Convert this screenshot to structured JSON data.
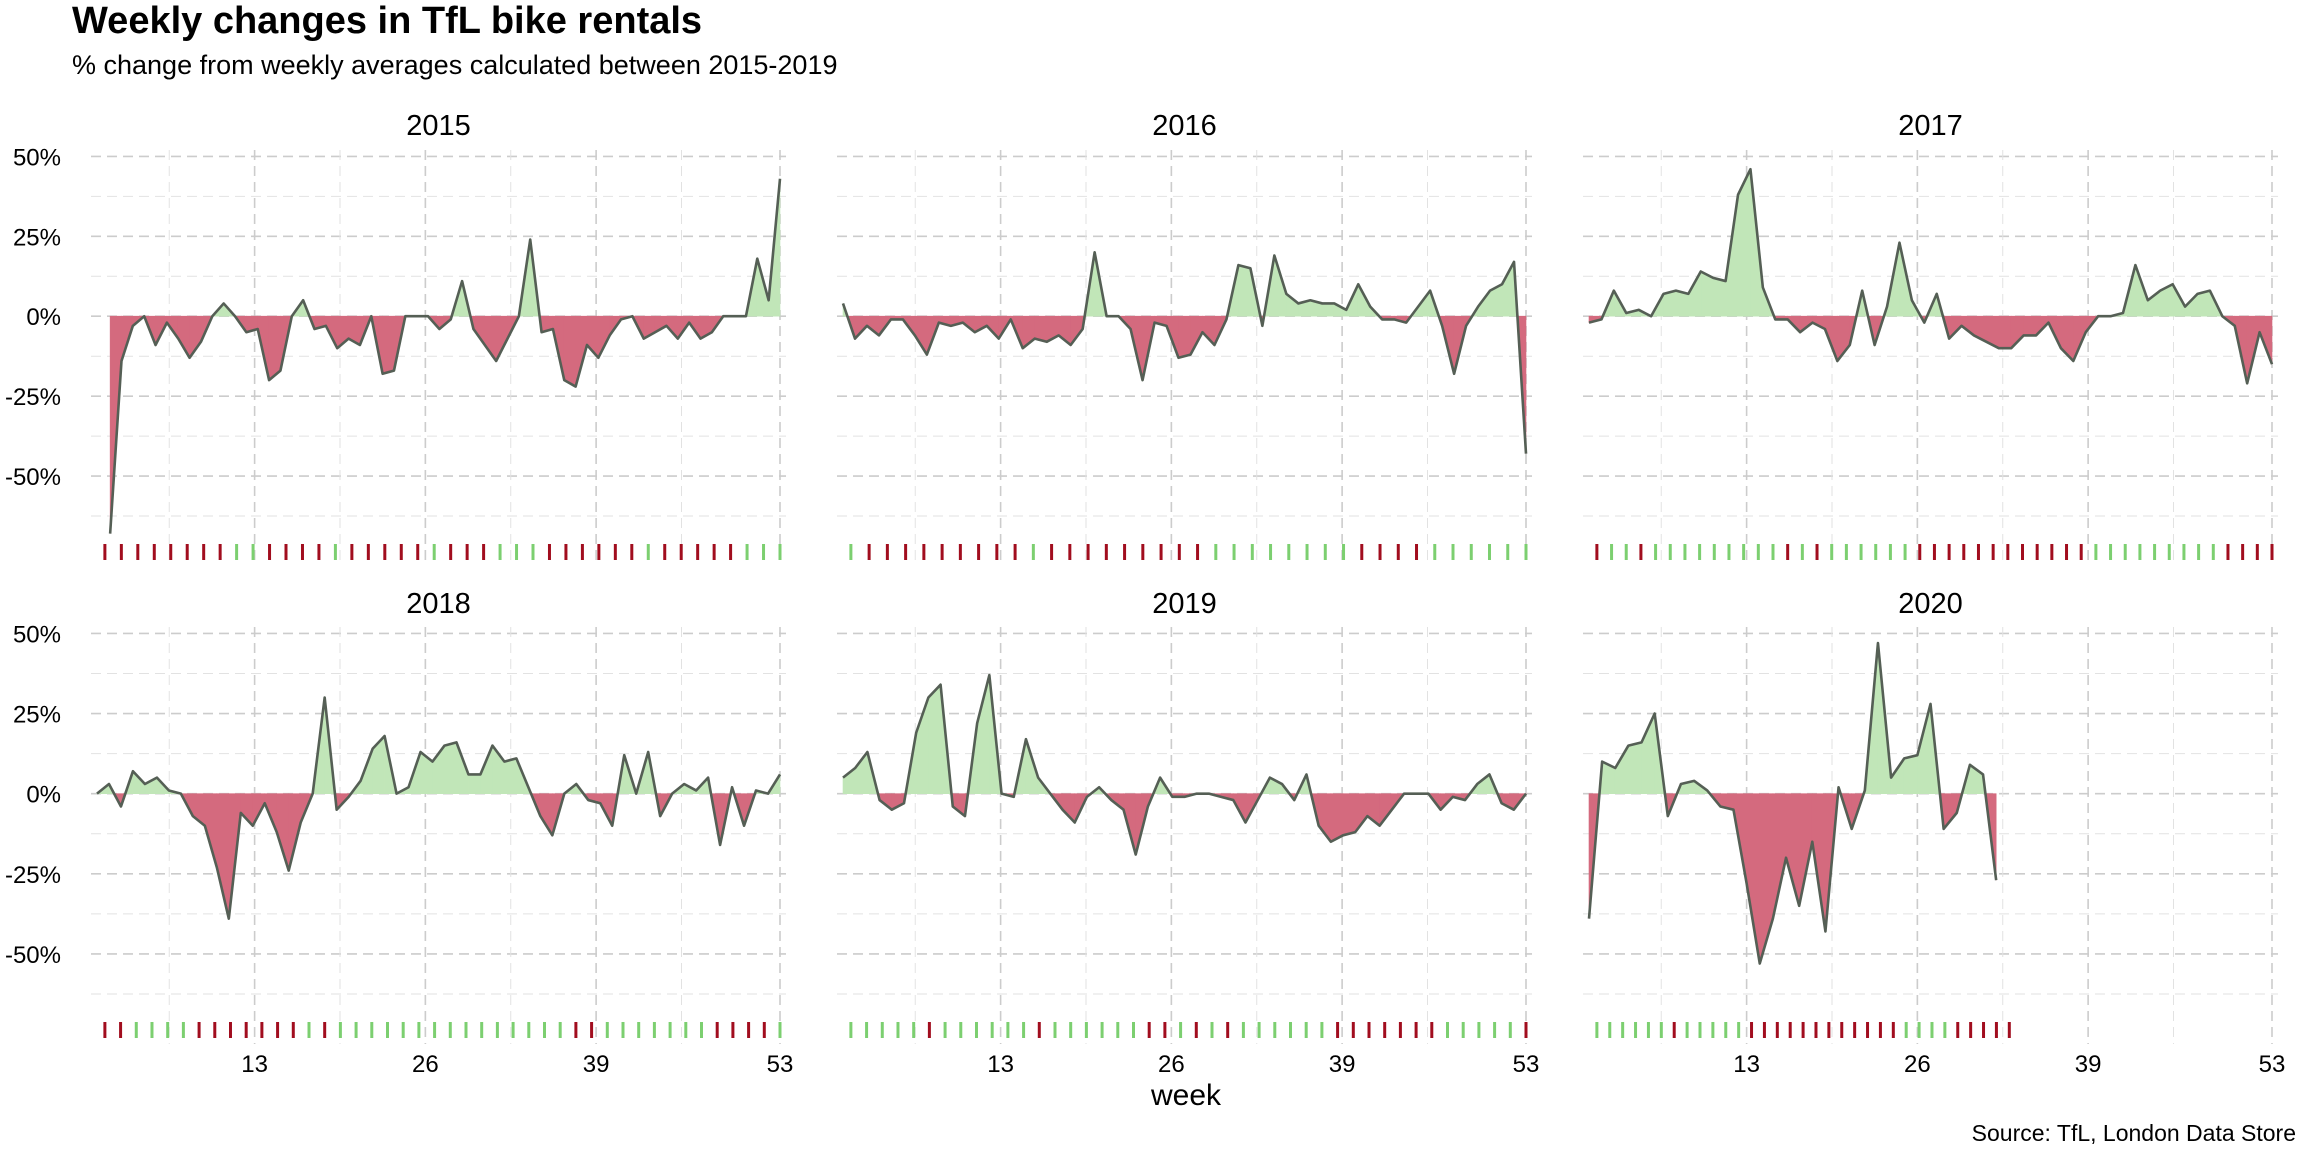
{
  "chart_data": {
    "type": "area",
    "title": "Weekly changes in TfL bike rentals",
    "subtitle": "% change from weekly averages calculated between 2015-2019",
    "xlabel": "week",
    "ylabel": "",
    "caption": "Source: TfL, London Data Store",
    "xlim": [
      1,
      53
    ],
    "ylim": [
      -70,
      52
    ],
    "x_ticks": [
      13,
      26,
      39,
      53
    ],
    "x_tick_labels": [
      "13",
      "26",
      "39",
      "53"
    ],
    "y_ticks": [
      50,
      25,
      0,
      -25,
      -50
    ],
    "y_tick_labels": [
      "50%",
      "25%",
      "0%",
      "-25%",
      "-50%"
    ],
    "grid": true,
    "colors": {
      "positive": "#c1e6b8",
      "negative": "#d46a7e",
      "line": "#555f55",
      "rug_positive": "#7ccf70",
      "rug_negative": "#a10d1e",
      "grid": "#cccccc"
    },
    "facets": [
      {
        "label": "2015",
        "weeks_start": 2,
        "values": [
          -68,
          -14,
          -3,
          0,
          -9,
          -2,
          -7,
          -13,
          -8,
          0,
          4,
          0,
          -5,
          -4,
          -20,
          -17,
          0,
          5,
          -4,
          -3,
          -10,
          -7,
          -9,
          0,
          -18,
          -17,
          0,
          0,
          0,
          -4,
          -1,
          11,
          -4,
          -9,
          -14,
          -7,
          0,
          24,
          -5,
          -4,
          -20,
          -22,
          -9,
          -13,
          -6,
          -1,
          0,
          -7,
          -5,
          -3,
          -7,
          -2,
          -7,
          -5,
          0,
          0,
          0,
          18,
          5,
          43
        ]
      },
      {
        "label": "2016",
        "weeks_start": 1,
        "values": [
          4,
          -7,
          -3,
          -6,
          -1,
          -1,
          -6,
          -12,
          -2,
          -3,
          -2,
          -5,
          -3,
          -7,
          -1,
          -10,
          -7,
          -8,
          -6,
          -9,
          -4,
          20,
          0,
          0,
          -4,
          -20,
          -2,
          -3,
          -13,
          -12,
          -5,
          -9,
          -1,
          16,
          15,
          -3,
          19,
          7,
          4,
          5,
          4,
          4,
          2,
          10,
          3,
          -1,
          -1,
          -2,
          3,
          8,
          -3,
          -18,
          -3,
          3,
          8,
          10,
          17,
          -43
        ]
      },
      {
        "label": "2017",
        "weeks_start": 1,
        "values": [
          -2,
          -1,
          8,
          1,
          2,
          0,
          7,
          8,
          7,
          14,
          12,
          11,
          38,
          46,
          9,
          -1,
          -1,
          -5,
          -2,
          -4,
          -14,
          -9,
          8,
          -9,
          3,
          23,
          5,
          -2,
          7,
          -7,
          -3,
          -6,
          -8,
          -10,
          -10,
          -6,
          -6,
          -2,
          -10,
          -14,
          -5,
          0,
          0,
          1,
          16,
          5,
          8,
          10,
          3,
          7,
          8,
          0,
          -3,
          -21,
          -5,
          -15
        ]
      },
      {
        "label": "2018",
        "weeks_start": 1,
        "values": [
          0,
          3,
          -4,
          7,
          3,
          5,
          1,
          0,
          -7,
          -10,
          -23,
          -39,
          -6,
          -10,
          -3,
          -12,
          -24,
          -9,
          0,
          30,
          -5,
          -1,
          4,
          14,
          18,
          0,
          2,
          13,
          10,
          15,
          16,
          6,
          6,
          15,
          10,
          11,
          2,
          -7,
          -13,
          0,
          3,
          -2,
          -3,
          -10,
          12,
          0,
          13,
          -7,
          0,
          3,
          1,
          5,
          -16,
          2,
          -10,
          1,
          0,
          6
        ]
      },
      {
        "label": "2019",
        "weeks_start": 1,
        "values": [
          5,
          8,
          13,
          -2,
          -5,
          -3,
          19,
          30,
          34,
          -4,
          -7,
          22,
          37,
          0,
          -1,
          17,
          5,
          0,
          -5,
          -9,
          -1,
          2,
          -2,
          -5,
          -19,
          -4,
          5,
          -1,
          -1,
          0,
          0,
          -1,
          -2,
          -9,
          -2,
          5,
          3,
          -2,
          6,
          -10,
          -15,
          -13,
          -12,
          -7,
          -10,
          -5,
          0,
          0,
          0,
          -5,
          -1,
          -2,
          3,
          6,
          -3,
          -5,
          0
        ]
      },
      {
        "label": "2020",
        "weeks_start": 1,
        "values": [
          -39,
          10,
          8,
          15,
          16,
          25,
          -7,
          3,
          4,
          1,
          -4,
          -5,
          -28,
          -53,
          -39,
          -20,
          -35,
          -15,
          -43,
          2,
          -11,
          1,
          47,
          5,
          11,
          12,
          28,
          -11,
          -6,
          9,
          6,
          -27
        ]
      }
    ],
    "rug": [
      [
        "n",
        "n",
        "n",
        "n",
        "n",
        "n",
        "n",
        "n",
        "p",
        "p",
        "n",
        "n",
        "n",
        "n",
        "p",
        "n",
        "n",
        "n",
        "n",
        "n",
        "p",
        "n",
        "n",
        "n",
        "p",
        "p",
        "p",
        "n",
        "n",
        "n",
        "n",
        "n",
        "n",
        "p",
        "n",
        "n",
        "n",
        "n",
        "n",
        "p",
        "p",
        "p"
      ],
      [
        "p",
        "n",
        "n",
        "n",
        "n",
        "n",
        "n",
        "n",
        "n",
        "n",
        "p",
        "n",
        "n",
        "n",
        "n",
        "n",
        "n",
        "n",
        "n",
        "n",
        "p",
        "p",
        "p",
        "p",
        "p",
        "p",
        "p",
        "p",
        "n",
        "n",
        "n",
        "n",
        "p",
        "p",
        "p",
        "p",
        "p",
        "p"
      ],
      [
        "n",
        "p",
        "p",
        "n",
        "p",
        "p",
        "p",
        "p",
        "p",
        "p",
        "p",
        "p",
        "p",
        "n",
        "p",
        "n",
        "p",
        "p",
        "p",
        "p",
        "p",
        "p",
        "n",
        "n",
        "n",
        "n",
        "n",
        "n",
        "n",
        "n",
        "n",
        "n",
        "n",
        "n",
        "p",
        "p",
        "p",
        "p",
        "p",
        "p",
        "p",
        "p",
        "p",
        "n",
        "n",
        "n",
        "n"
      ],
      [
        "n",
        "n",
        "p",
        "p",
        "p",
        "p",
        "n",
        "n",
        "n",
        "n",
        "n",
        "n",
        "n",
        "p",
        "n",
        "p",
        "p",
        "p",
        "p",
        "p",
        "p",
        "p",
        "p",
        "p",
        "p",
        "p",
        "p",
        "p",
        "p",
        "p",
        "n",
        "n",
        "p",
        "p",
        "p",
        "p",
        "p",
        "p",
        "p",
        "n",
        "n",
        "n",
        "n",
        "p"
      ],
      [
        "p",
        "p",
        "p",
        "p",
        "p",
        "n",
        "p",
        "p",
        "p",
        "p",
        "p",
        "p",
        "n",
        "p",
        "p",
        "p",
        "p",
        "p",
        "p",
        "n",
        "n",
        "p",
        "n",
        "p",
        "n",
        "p",
        "p",
        "p",
        "p",
        "p",
        "p",
        "n",
        "n",
        "n",
        "n",
        "n",
        "n",
        "n",
        "p",
        "p",
        "p",
        "p",
        "p",
        "n"
      ],
      [
        "p",
        "p",
        "p",
        "p",
        "p",
        "p",
        "n",
        "p",
        "p",
        "p",
        "p",
        "p",
        "n",
        "n",
        "n",
        "n",
        "n",
        "n",
        "n",
        "n",
        "n",
        "n",
        "n",
        "n",
        "p",
        "p",
        "p",
        "p",
        "n",
        "n",
        "n",
        "n",
        "n"
      ]
    ]
  }
}
